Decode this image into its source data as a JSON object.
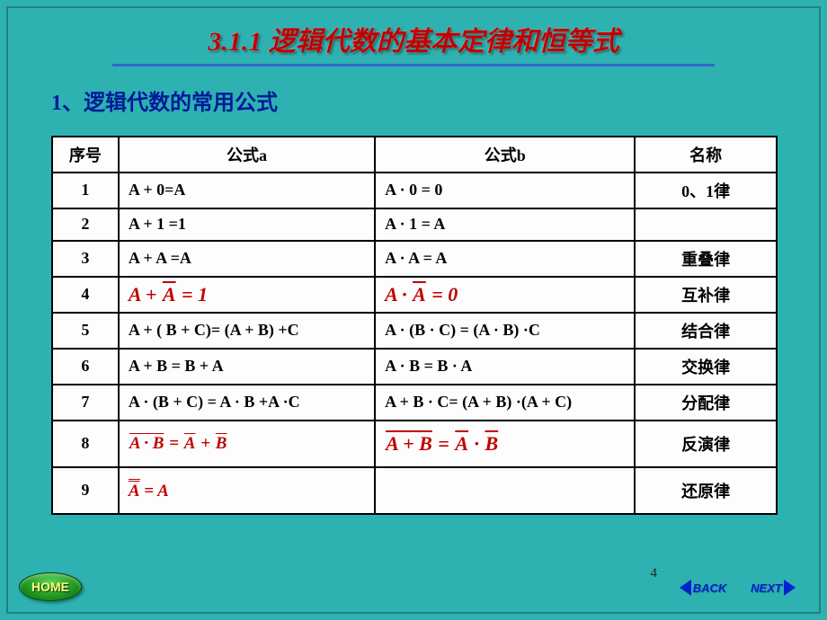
{
  "title": "3.1.1  逻辑代数的基本定律和恒等式",
  "subtitle": "1、逻辑代数的常用公式",
  "headers": {
    "num": "序号",
    "a": "公式a",
    "b": "公式b",
    "name": "名称"
  },
  "rows": [
    {
      "num": "1",
      "a": "A + 0=A",
      "b": "A · 0 = 0",
      "name": "0、1律",
      "red": false
    },
    {
      "num": "2",
      "a": "A + 1 =1",
      "b": "A · 1 = A",
      "name": "",
      "red": false
    },
    {
      "num": "3",
      "a": "A + A =A",
      "b": "A · A = A",
      "name": "重叠律",
      "red": false
    },
    {
      "num": "4",
      "a": "A + Ā = 1",
      "b": "A · Ā = 0",
      "name": "互补律",
      "red": true
    },
    {
      "num": "5",
      "a": "A + ( B + C)= (A + B) +C",
      "b": "A · (B · C) = (A · B) ·C",
      "name": "结合律",
      "red": false
    },
    {
      "num": "6",
      "a": "A + B = B + A",
      "b": "A · B = B · A",
      "name": "交换律",
      "red": false
    },
    {
      "num": "7",
      "a": "A · (B + C) = A · B +A ·C",
      "b": "A + B · C= (A + B) ·(A + C)",
      "name": "分配律",
      "red": false
    },
    {
      "num": "8",
      "name": "反演律"
    },
    {
      "num": "9",
      "name": "还原律"
    }
  ],
  "buttons": {
    "home": "HOME",
    "back": "BACK",
    "next": "NEXT"
  },
  "slide_number": "4",
  "colors": {
    "background": "#2eb1b1",
    "title_color": "#c00000",
    "subtitle_color": "#001a99",
    "table_bg": "#fdfdfd",
    "formula_red": "#c00000",
    "nav_color": "#0022cc",
    "home_text": "#ffff66"
  }
}
